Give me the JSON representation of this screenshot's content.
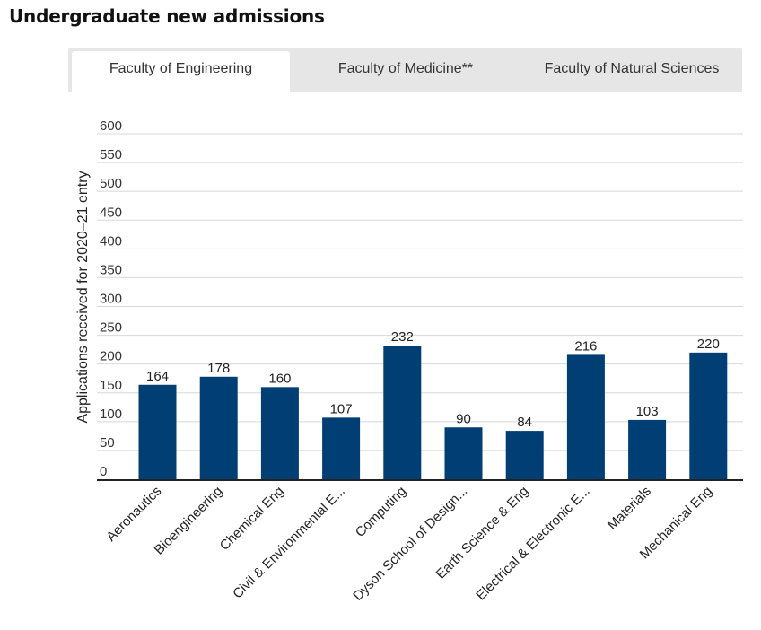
{
  "page": {
    "title": "Undergraduate new admissions"
  },
  "tabs": [
    {
      "label": "Faculty of Engineering",
      "active": true
    },
    {
      "label": "Faculty of Medicine**",
      "active": false
    },
    {
      "label": "Faculty of Natural Sciences",
      "active": false
    }
  ],
  "colors": {
    "bar": "#003e74",
    "tab_inactive": "#e6e6e6",
    "tab_active": "#ffffff",
    "gridline": "#d8d8d8",
    "axis": "#222222"
  },
  "chart_data": {
    "type": "bar",
    "ylabel": "Applications received for 2020–21 entry",
    "xlabel": "",
    "ylim": [
      0,
      600
    ],
    "yticks": [
      0,
      50,
      100,
      150,
      200,
      250,
      300,
      350,
      400,
      450,
      500,
      550,
      600
    ],
    "grid": true,
    "categories": [
      "Aeronautics",
      "Bioengineering",
      "Chemical Eng",
      "Civil & Environmental E...",
      "Computing",
      "Dyson School of Design...",
      "Earth Science & Eng",
      "Electrical & Electronic E...",
      "Materials",
      "Mechanical Eng"
    ],
    "values": [
      164,
      178,
      160,
      107,
      232,
      90,
      84,
      216,
      103,
      220
    ]
  }
}
